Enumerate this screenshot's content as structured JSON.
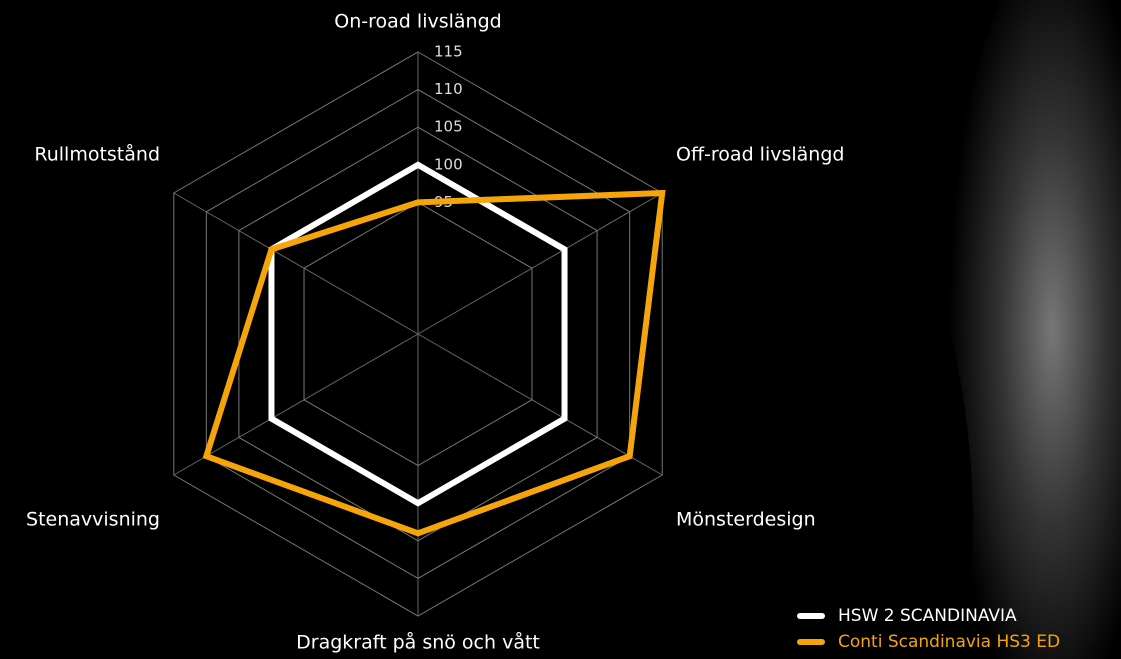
{
  "chart_data": {
    "type": "radar",
    "categories": [
      "On-road livslängd",
      "Off-road livslängd",
      "Mönsterdesign",
      "Dragkraft på snö och vått",
      "Stenavvisning",
      "Rullmotstånd"
    ],
    "series": [
      {
        "name": "HSW 2 SCANDINAVIA",
        "color": "#ffffff",
        "values": [
          100,
          100,
          100,
          100,
          100,
          100
        ]
      },
      {
        "name": "Conti Scandinavia HS3 ED",
        "color": "#f5a50a",
        "values": [
          95,
          115,
          110,
          104,
          110,
          100
        ]
      }
    ],
    "ylim": [
      77.5,
      115
    ],
    "yticks": [
      95,
      100,
      105,
      110,
      115
    ],
    "grid": true
  }
}
